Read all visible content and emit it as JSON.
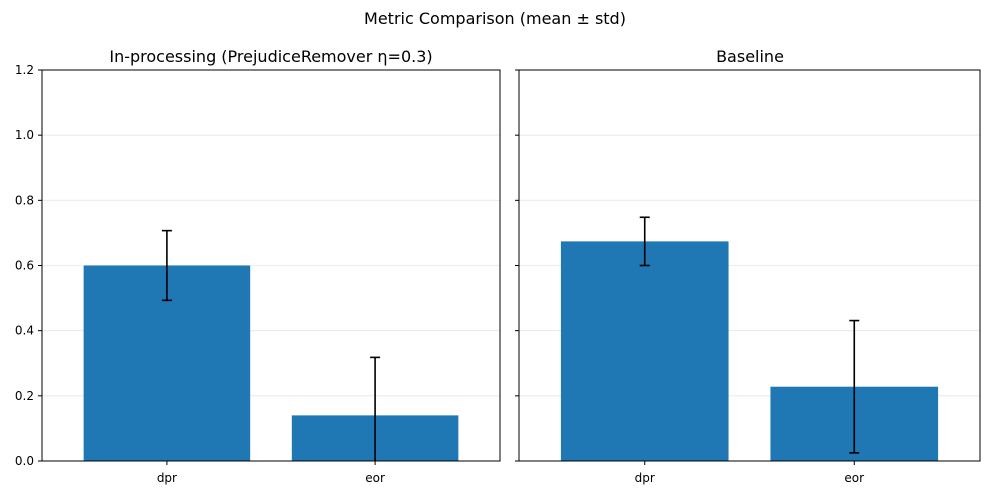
{
  "figure": {
    "suptitle": "Metric Comparison (mean ± std)"
  },
  "colors": {
    "bar": "#1f77b4",
    "errorbar": "#000000",
    "grid": "#e6e6e6",
    "axis": "#000000"
  },
  "chart_data": [
    {
      "type": "bar",
      "title": "In-processing (PrejudiceRemover η=0.3)",
      "categories": [
        "dpr",
        "eor"
      ],
      "values": [
        0.6,
        0.14
      ],
      "errors": [
        0.107,
        0.178
      ],
      "ylim": [
        0,
        1.2
      ],
      "yticks": [
        "0.0",
        "0.2",
        "0.4",
        "0.6",
        "0.8",
        "1.0",
        "1.2"
      ],
      "grid": "y-axis, light",
      "xlabel": "",
      "ylabel": ""
    },
    {
      "type": "bar",
      "title": "Baseline",
      "categories": [
        "dpr",
        "eor"
      ],
      "values": [
        0.674,
        0.228
      ],
      "errors": [
        0.074,
        0.203
      ],
      "ylim": [
        0,
        1.2
      ],
      "yticks": [
        "0.0",
        "0.2",
        "0.4",
        "0.6",
        "0.8",
        "1.0",
        "1.2"
      ],
      "grid": "y-axis, light",
      "xlabel": "",
      "ylabel": ""
    }
  ]
}
